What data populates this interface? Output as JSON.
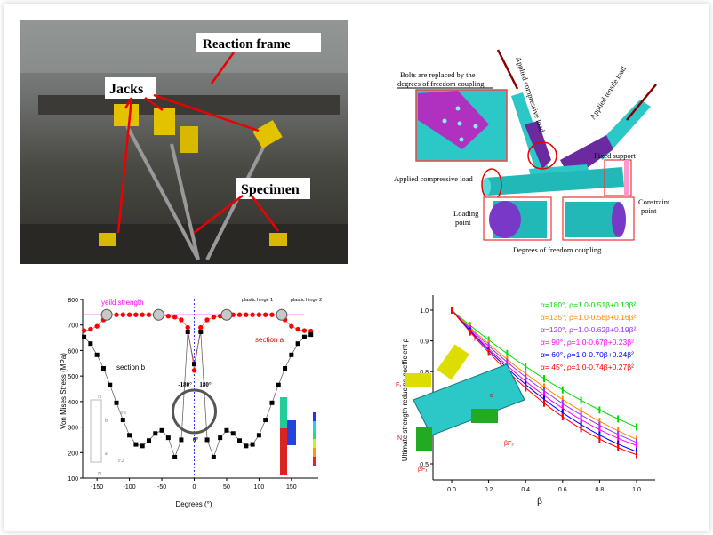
{
  "photo": {
    "labels": {
      "reaction_frame": "Reaction frame",
      "jacks": "Jacks",
      "specimen": "Specimen"
    }
  },
  "fe_model": {
    "bolts_note_line1": "Bolts are replaced by the",
    "bolts_note_line2": "degrees of freedom coupling",
    "applied_compressive_load_brace": "Applied compressive load",
    "applied_tensile_load": "Applied tensile load",
    "fixed_support": "Fixed support",
    "applied_compressive_load_chord": "Applied compressive load",
    "loading_point": [
      "Loading",
      "point"
    ],
    "constraint_point": [
      "Constraint",
      "point"
    ],
    "dof_coupling": "Degrees of freedom coupling"
  },
  "chart_data": [
    {
      "type": "line",
      "xlabel": "Degrees (°)",
      "ylabel": "Von Mises Stress (MPa)",
      "xlim": [
        -180,
        185
      ],
      "ylim": [
        100,
        800
      ],
      "xticks": [
        -150,
        -100,
        -50,
        0,
        50,
        100,
        150
      ],
      "yticks": [
        100,
        200,
        300,
        400,
        500,
        600,
        700,
        800
      ],
      "x": [
        -170,
        -160,
        -150,
        -140,
        -130,
        -120,
        -110,
        -100,
        -90,
        -80,
        -70,
        -60,
        -50,
        -40,
        -30,
        -20,
        -10,
        0,
        10,
        20,
        30,
        40,
        50,
        60,
        70,
        80,
        90,
        100,
        110,
        120,
        130,
        140,
        150,
        160,
        170,
        180
      ],
      "series": [
        {
          "name": "section a",
          "color": "#ff0000",
          "values": [
            678,
            683,
            695,
            720,
            740,
            740,
            740,
            740,
            740,
            740,
            740,
            740,
            735,
            735,
            731,
            720,
            690,
            522,
            690,
            720,
            731,
            735,
            740,
            740,
            740,
            740,
            740,
            740,
            740,
            740,
            740,
            720,
            695,
            683,
            678,
            676
          ]
        },
        {
          "name": "section b",
          "color": "#000000",
          "values": [
            653,
            627,
            583,
            530,
            465,
            395,
            328,
            268,
            232,
            226,
            247,
            275,
            287,
            258,
            182,
            250,
            673,
            547,
            673,
            250,
            182,
            258,
            287,
            275,
            247,
            226,
            232,
            268,
            328,
            395,
            465,
            530,
            583,
            627,
            653,
            662
          ]
        }
      ],
      "yield_strength": {
        "label": "yeild strength",
        "value": 740,
        "color": "#ff00ff"
      },
      "plastic_hinges": {
        "positions": [
          -135,
          -55,
          50,
          135
        ],
        "labels": [
          "plastic hinge 1",
          "plastic hinge 2"
        ]
      },
      "annotations": {
        "section_a": "section a",
        "section_b": "section b",
        "angle_neg": "-180°",
        "angle_pos": "180°",
        "angle_zero": "0°",
        "inset_labels": [
          "N",
          "b",
          "F1",
          "a",
          "F2",
          "N"
        ]
      }
    },
    {
      "type": "line",
      "xlabel": "β",
      "ylabel": "Ultimate strength reducing coefficient ρ",
      "xlim": [
        -0.1,
        1.1
      ],
      "ylim": [
        0.45,
        1.05
      ],
      "xticks": [
        "0.0",
        "0.2",
        "0.4",
        "0.6",
        "0.8",
        "1.0"
      ],
      "yticks": [
        "0.5",
        "0.6",
        "0.7",
        "0.8",
        "0.9",
        "1.0"
      ],
      "x": [
        0,
        0.1,
        0.2,
        0.3,
        0.4,
        0.5,
        0.6,
        0.7,
        0.8,
        0.9,
        1.0
      ],
      "series": [
        {
          "name": "α=180°, ρ=1.0-0.51β+0.13β²",
          "alpha": 180,
          "a": 0.51,
          "b": 0.13,
          "color": "#00dd00"
        },
        {
          "name": "α=135°, ρ=1.0-0.58β+0.16β²",
          "alpha": 135,
          "a": 0.58,
          "b": 0.16,
          "color": "#ff8800"
        },
        {
          "name": "α=120°, ρ=1.0-0.62β+0.19β²",
          "alpha": 120,
          "a": 0.62,
          "b": 0.19,
          "color": "#9933ff"
        },
        {
          "name": "α=  90°, ρ=1.0-0.67β+0.23β²",
          "alpha": 90,
          "a": 0.67,
          "b": 0.23,
          "color": "#ff00ff"
        },
        {
          "name": "α=  60°, ρ=1.0-0.70β+0.24β²",
          "alpha": 60,
          "a": 0.7,
          "b": 0.24,
          "color": "#0000ff"
        },
        {
          "name": "α=  45°, ρ=1.0-0.74β+0.27β²",
          "alpha": 45,
          "a": 0.74,
          "b": 0.27,
          "color": "#ff0000"
        }
      ],
      "inset_labels": [
        "F₁",
        "F₂",
        "N",
        "βF₁",
        "βF₂",
        "α"
      ]
    }
  ]
}
